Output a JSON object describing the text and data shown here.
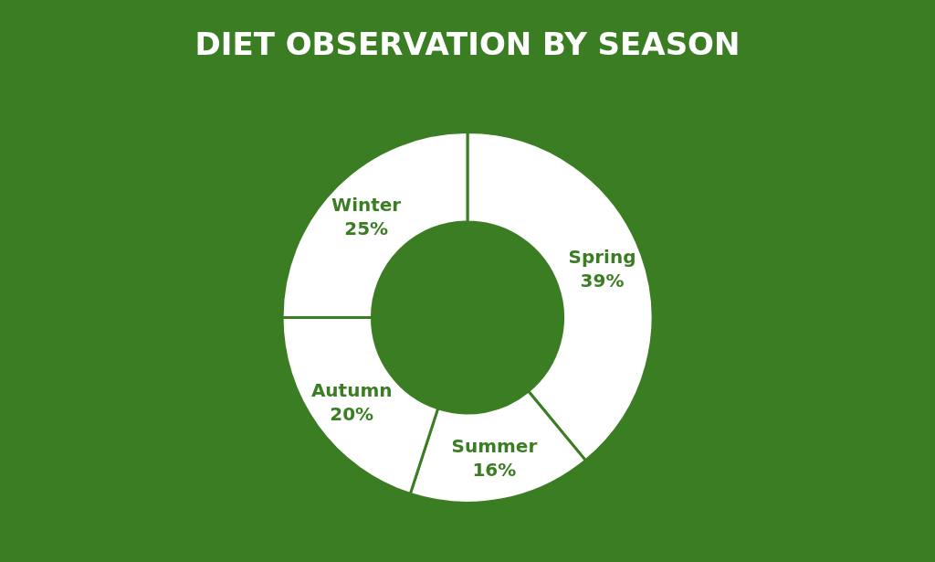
{
  "chart_data": {
    "type": "donut",
    "title": "DIET OBSERVATION BY SEASON",
    "categories": [
      "Spring",
      "Summer",
      "Autumn",
      "Winter"
    ],
    "values": [
      39,
      16,
      20,
      25
    ],
    "value_labels": [
      "39%",
      "16%",
      "20%",
      "25%"
    ],
    "colors": [
      "#ffffff",
      "#ffffff",
      "#ffffff",
      "#ffffff"
    ],
    "legend": false
  }
}
